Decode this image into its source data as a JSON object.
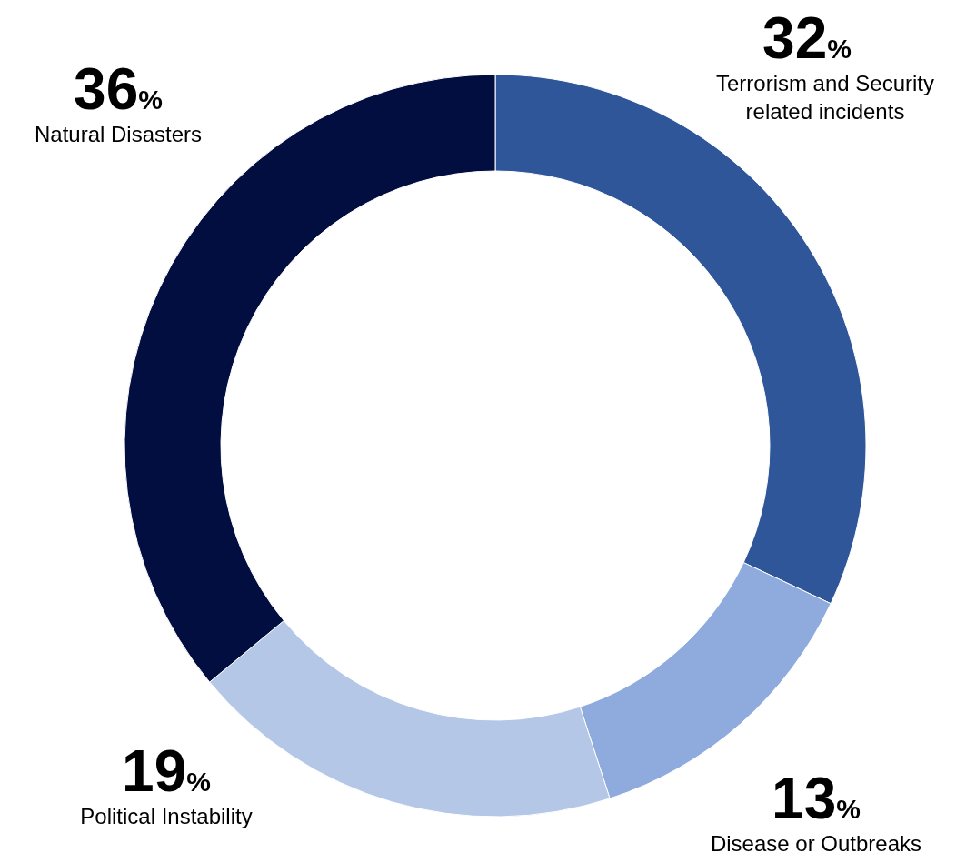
{
  "chart_data": {
    "type": "donut",
    "categories": [
      "Terrorism and Security related incidents",
      "Disease or Outbreaks",
      "Political Instability",
      "Natural Disasters"
    ],
    "values": [
      32,
      13,
      19,
      36
    ],
    "colors": [
      "#30569a",
      "#8faadc",
      "#b4c7e7",
      "#020d40"
    ],
    "value_labels": [
      "32%",
      "13%",
      "19%",
      "36%"
    ],
    "legend": false
  }
}
